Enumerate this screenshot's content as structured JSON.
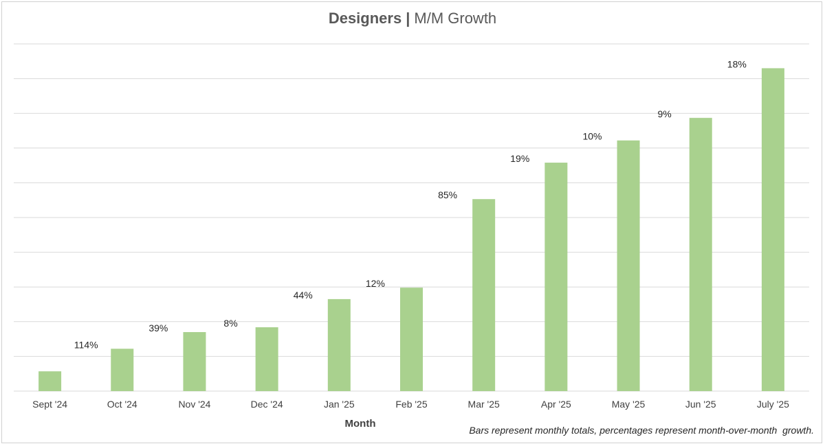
{
  "chart_data": {
    "type": "bar",
    "title_bold": "Designers",
    "title_sep": "|",
    "title_rest": "M/M Growth",
    "xlabel": "Month",
    "ylabel": "",
    "ylim": [
      0,
      10
    ],
    "grid": true,
    "categories": [
      "Sept '24",
      "Oct '24",
      "Nov '24",
      "Dec '24",
      "Jan '25",
      "Feb '25",
      "Mar '25",
      "Apr '25",
      "May '25",
      "Jun '25",
      "July '25"
    ],
    "values": [
      0.57,
      1.22,
      1.7,
      1.84,
      2.65,
      2.98,
      5.53,
      6.58,
      7.22,
      7.87,
      9.3
    ],
    "growth_labels": [
      "114%",
      "39%",
      "8%",
      "44%",
      "12%",
      "85%",
      "19%",
      "10%",
      "9%",
      "18%"
    ],
    "note": "Bars represent monthly totals, percentages represent month-over-month  growth.",
    "bar_color": "#a9d18e",
    "grid_color": "#d9d9d9"
  }
}
